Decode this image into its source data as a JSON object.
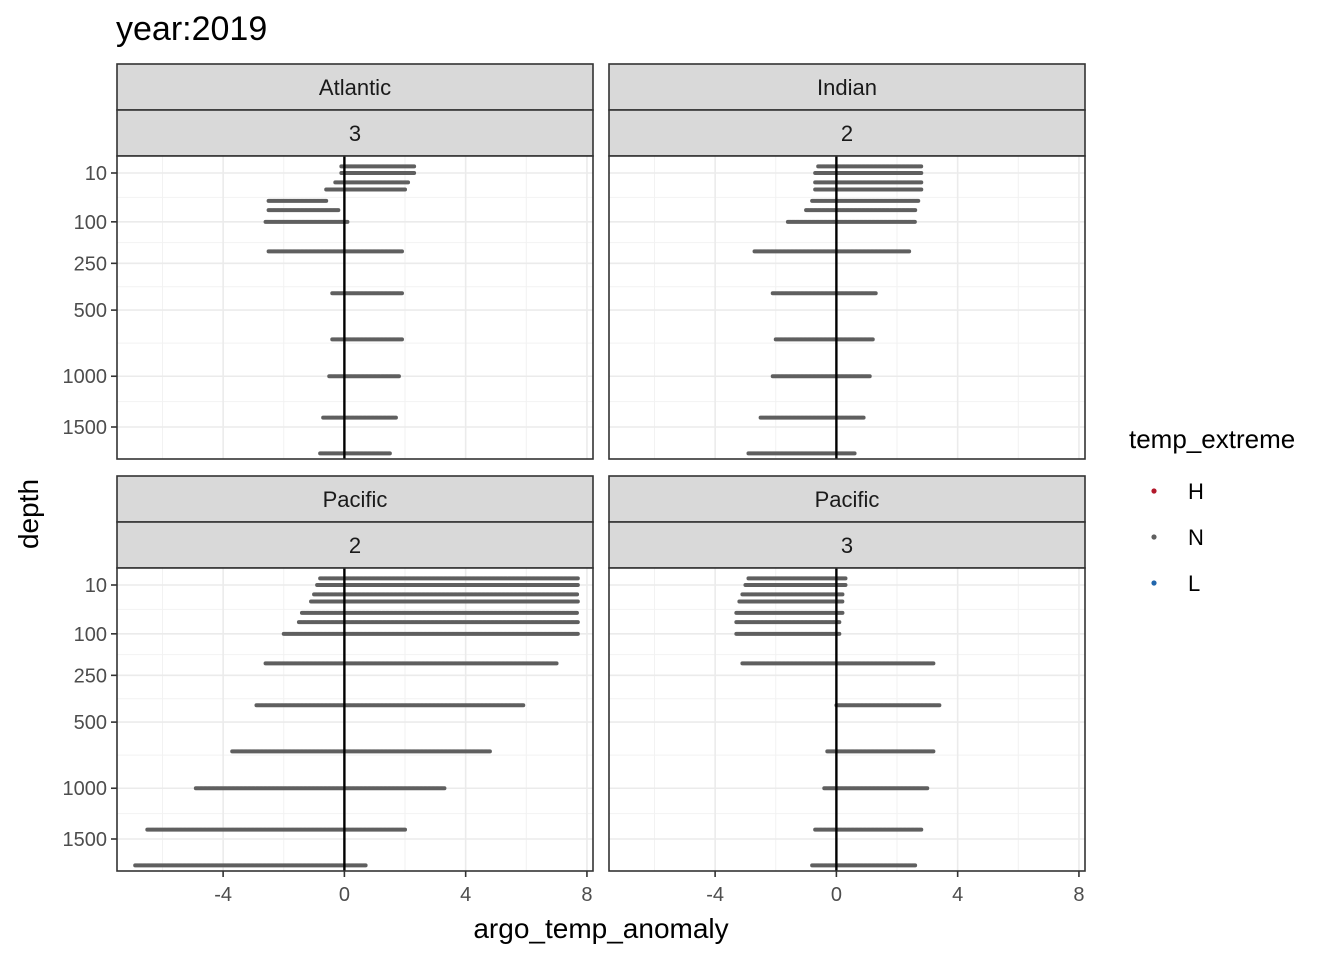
{
  "chart_data": {
    "type": "scatter",
    "title": "year:2019",
    "xlabel": "argo_temp_anomaly",
    "ylabel": "depth",
    "xlim": [
      -7.5,
      8.2
    ],
    "x_ticks": [
      -4,
      0,
      4,
      8
    ],
    "x_tick_labels": [
      "-4",
      "0",
      "4",
      "8"
    ],
    "y_scale": "reverse-sqrt",
    "y_ticks": [
      10,
      100,
      250,
      500,
      1000,
      1500
    ],
    "y_tick_labels": [
      "10",
      "100",
      "250",
      "500",
      "1000",
      "1500"
    ],
    "reference_line_x": 0,
    "grid": true,
    "legend": {
      "title": "temp_extreme",
      "position": "right",
      "entries": [
        {
          "label": "H",
          "color": "#B2182B"
        },
        {
          "label": "N",
          "color": "#5F5F5F"
        },
        {
          "label": "L",
          "color": "#2166AC"
        }
      ]
    },
    "panels": [
      {
        "row": 0,
        "col": 0,
        "strip_top": "Atlantic",
        "strip_bottom": "3",
        "series": [
          {
            "name": "N",
            "rows": [
              {
                "depth": 5,
                "xmin": -0.1,
                "xmax": 2.3
              },
              {
                "depth": 10,
                "xmin": -0.1,
                "xmax": 2.3
              },
              {
                "depth": 20,
                "xmin": -0.3,
                "xmax": 2.1
              },
              {
                "depth": 30,
                "xmin": -0.6,
                "xmax": 2.0
              },
              {
                "depth": 50,
                "xmin": -2.5,
                "xmax": -0.6
              },
              {
                "depth": 70,
                "xmin": -2.5,
                "xmax": -0.2
              },
              {
                "depth": 100,
                "xmin": -2.6,
                "xmax": 0.1
              },
              {
                "depth": 200,
                "xmin": -2.5,
                "xmax": 1.9
              },
              {
                "depth": 400,
                "xmin": -0.4,
                "xmax": 1.9
              },
              {
                "depth": 700,
                "xmin": -0.4,
                "xmax": 1.9
              },
              {
                "depth": 1000,
                "xmin": -0.5,
                "xmax": 1.8
              },
              {
                "depth": 1400,
                "xmin": -0.7,
                "xmax": 1.7
              },
              {
                "depth": 1800,
                "xmin": -0.8,
                "xmax": 1.5
              }
            ]
          }
        ]
      },
      {
        "row": 0,
        "col": 1,
        "strip_top": "Indian",
        "strip_bottom": "2",
        "series": [
          {
            "name": "N",
            "rows": [
              {
                "depth": 5,
                "xmin": -0.6,
                "xmax": 2.8
              },
              {
                "depth": 10,
                "xmin": -0.7,
                "xmax": 2.8
              },
              {
                "depth": 20,
                "xmin": -0.7,
                "xmax": 2.8
              },
              {
                "depth": 30,
                "xmin": -0.7,
                "xmax": 2.8
              },
              {
                "depth": 50,
                "xmin": -0.8,
                "xmax": 2.7
              },
              {
                "depth": 70,
                "xmin": -1.0,
                "xmax": 2.6
              },
              {
                "depth": 100,
                "xmin": -1.6,
                "xmax": 2.6
              },
              {
                "depth": 200,
                "xmin": -2.7,
                "xmax": 2.4
              },
              {
                "depth": 400,
                "xmin": -2.1,
                "xmax": 1.3
              },
              {
                "depth": 700,
                "xmin": -2.0,
                "xmax": 1.2
              },
              {
                "depth": 1000,
                "xmin": -2.1,
                "xmax": 1.1
              },
              {
                "depth": 1400,
                "xmin": -2.5,
                "xmax": 0.9
              },
              {
                "depth": 1800,
                "xmin": -2.9,
                "xmax": 0.6
              }
            ]
          }
        ]
      },
      {
        "row": 1,
        "col": 0,
        "strip_top": "Pacific",
        "strip_bottom": "2",
        "series": [
          {
            "name": "N",
            "rows": [
              {
                "depth": 5,
                "xmin": -0.8,
                "xmax": 7.7
              },
              {
                "depth": 10,
                "xmin": -0.9,
                "xmax": 7.7
              },
              {
                "depth": 20,
                "xmin": -1.0,
                "xmax": 7.7
              },
              {
                "depth": 30,
                "xmin": -1.1,
                "xmax": 7.7
              },
              {
                "depth": 50,
                "xmin": -1.4,
                "xmax": 7.7
              },
              {
                "depth": 70,
                "xmin": -1.5,
                "xmax": 7.7
              },
              {
                "depth": 100,
                "xmin": -2.0,
                "xmax": 7.7
              },
              {
                "depth": 200,
                "xmin": -2.6,
                "xmax": 7.0
              },
              {
                "depth": 400,
                "xmin": -2.9,
                "xmax": 5.9
              },
              {
                "depth": 700,
                "xmin": -3.7,
                "xmax": 4.8
              },
              {
                "depth": 1000,
                "xmin": -4.9,
                "xmax": 3.3
              },
              {
                "depth": 1400,
                "xmin": -6.5,
                "xmax": 2.0
              },
              {
                "depth": 1800,
                "xmin": -6.9,
                "xmax": 0.7
              }
            ]
          }
        ]
      },
      {
        "row": 1,
        "col": 1,
        "strip_top": "Pacific",
        "strip_bottom": "3",
        "series": [
          {
            "name": "N",
            "rows": [
              {
                "depth": 5,
                "xmin": -2.9,
                "xmax": 0.3
              },
              {
                "depth": 10,
                "xmin": -3.0,
                "xmax": 0.3
              },
              {
                "depth": 20,
                "xmin": -3.1,
                "xmax": 0.2
              },
              {
                "depth": 30,
                "xmin": -3.2,
                "xmax": 0.2
              },
              {
                "depth": 50,
                "xmin": -3.3,
                "xmax": 0.2
              },
              {
                "depth": 70,
                "xmin": -3.3,
                "xmax": 0.1
              },
              {
                "depth": 100,
                "xmin": -3.3,
                "xmax": 0.1
              },
              {
                "depth": 200,
                "xmin": -3.1,
                "xmax": 3.2
              },
              {
                "depth": 400,
                "xmin": 0.0,
                "xmax": 3.4
              },
              {
                "depth": 700,
                "xmin": -0.3,
                "xmax": 3.2
              },
              {
                "depth": 1000,
                "xmin": -0.4,
                "xmax": 3.0
              },
              {
                "depth": 1400,
                "xmin": -0.7,
                "xmax": 2.8
              },
              {
                "depth": 1800,
                "xmin": -0.8,
                "xmax": 2.6
              }
            ]
          }
        ]
      }
    ]
  }
}
